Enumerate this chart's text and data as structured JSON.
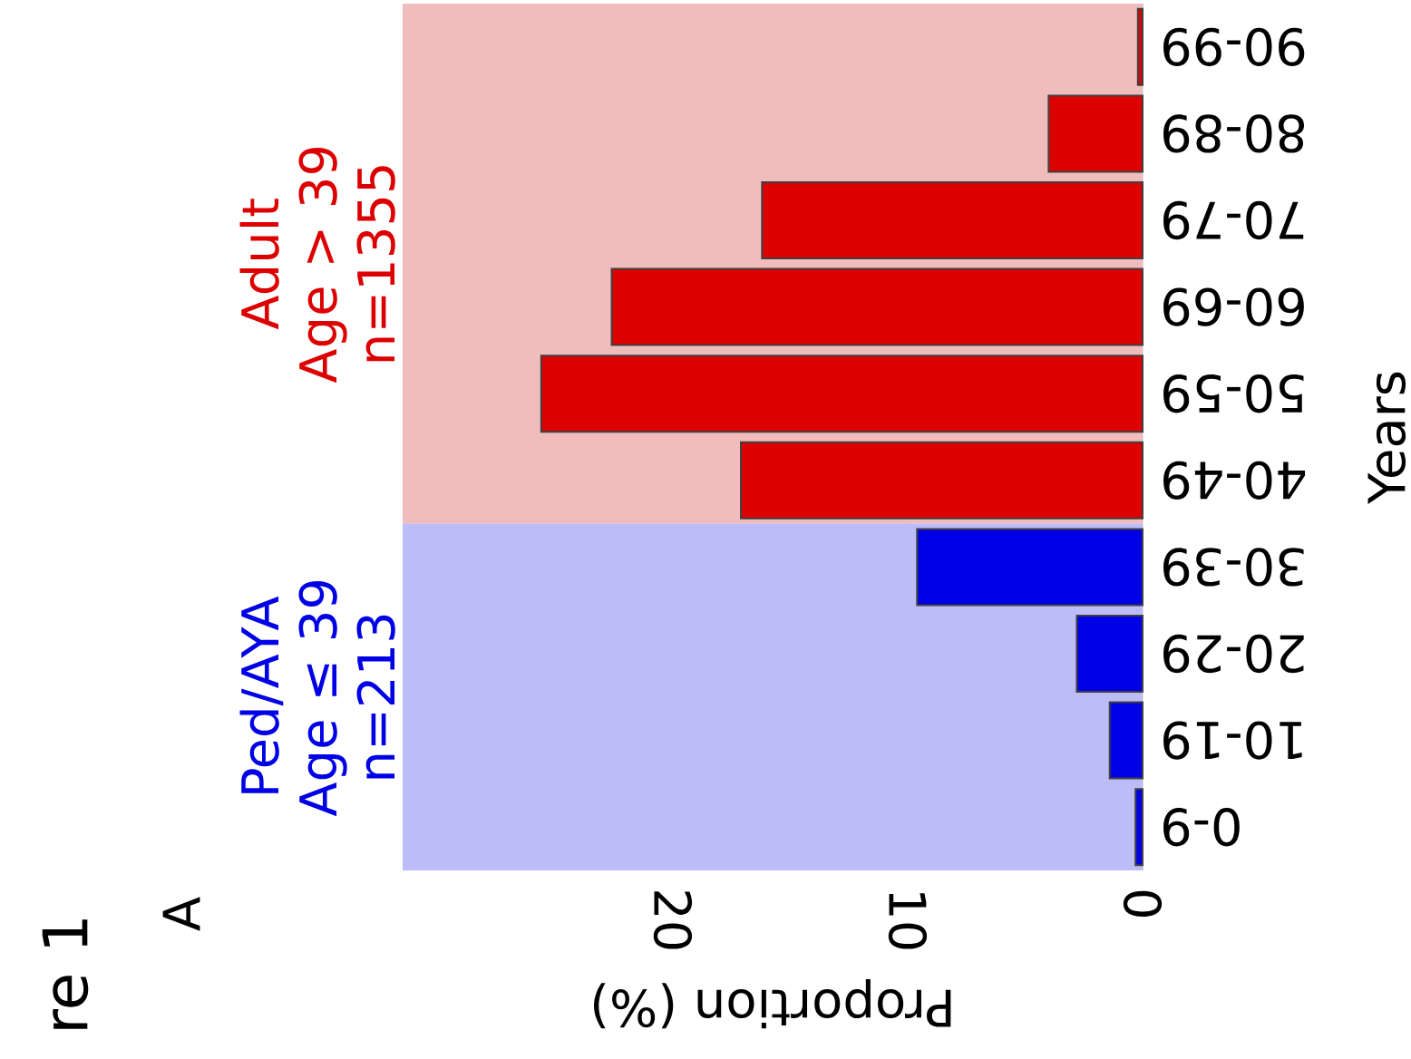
{
  "chart_data": {
    "type": "bar",
    "orientation": "horizontal",
    "xlabel": "Proportion (%)",
    "ylabel": "Years",
    "categories": [
      "90-99",
      "80-89",
      "70-79",
      "60-69",
      "50-59",
      "40-49",
      "30-39",
      "20-29",
      "10-19",
      "0-9"
    ],
    "values": [
      0.2,
      4.0,
      16.2,
      22.6,
      25.6,
      17.1,
      9.6,
      2.8,
      1.4,
      0.3
    ],
    "colors": [
      "#dd0000",
      "#dd0000",
      "#dd0000",
      "#dd0000",
      "#dd0000",
      "#dd0000",
      "#0000e6",
      "#0000e6",
      "#0000e6",
      "#0000e6"
    ],
    "xlim": [
      31.5,
      0
    ],
    "xticks": [
      20,
      10,
      0
    ],
    "grid": "x",
    "bands": [
      {
        "axis": "y",
        "from": "90-99",
        "to": "40-49",
        "label": "Adult Age > 39 n=1355",
        "color": "#f0bcbc"
      },
      {
        "axis": "y",
        "from": "30-39",
        "to": "0-9",
        "label": "Ped/AYA Age ≤ 39 n=213",
        "color": "#bcbcf8"
      }
    ],
    "annotations": [
      "re 1",
      "A"
    ]
  }
}
